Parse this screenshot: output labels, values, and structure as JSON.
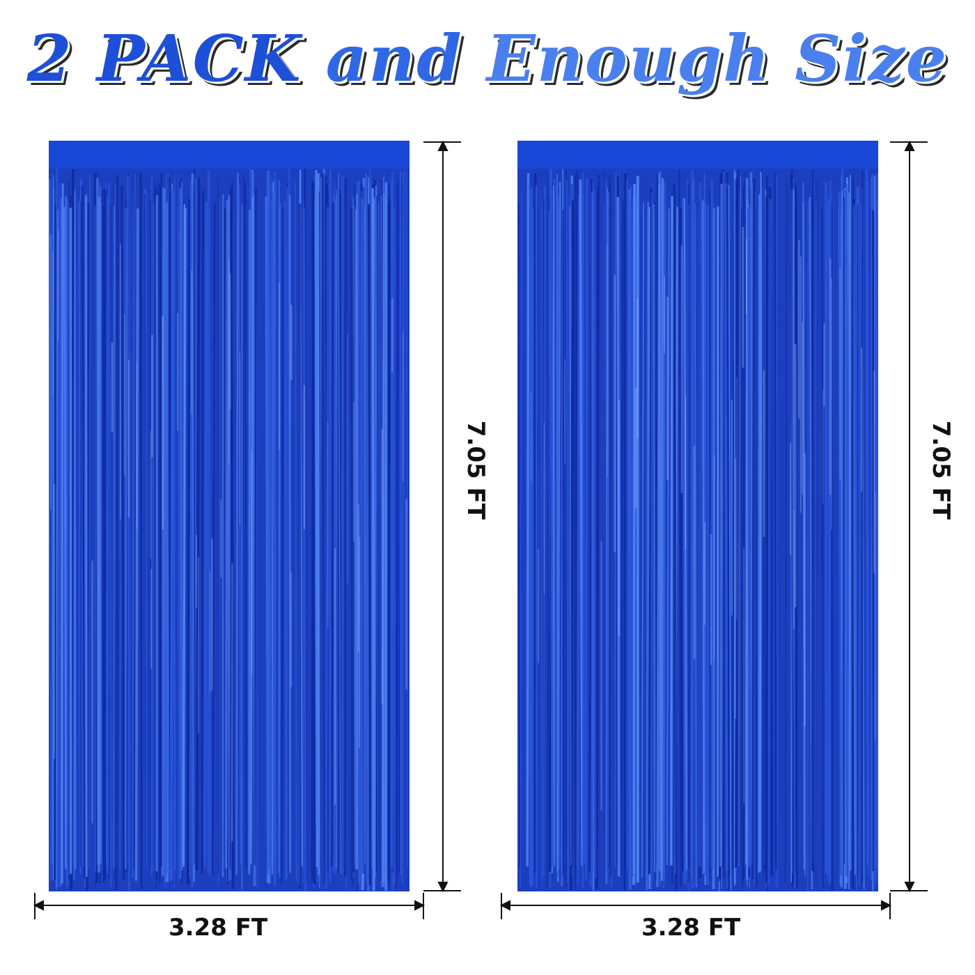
{
  "headline": {
    "part1": "2 PACK",
    "part2": "and",
    "part3": "Enough Size"
  },
  "curtains": [
    {
      "width_label": "3.28 FT",
      "height_label": "7.05 FT"
    },
    {
      "width_label": "3.28 FT",
      "height_label": "7.05 FT"
    }
  ],
  "colors": {
    "curtain_base": "#1b3fbf",
    "curtain_dark": "#0f2a9e",
    "curtain_light": "#4f82f2",
    "headline": "#1d4fd8"
  }
}
